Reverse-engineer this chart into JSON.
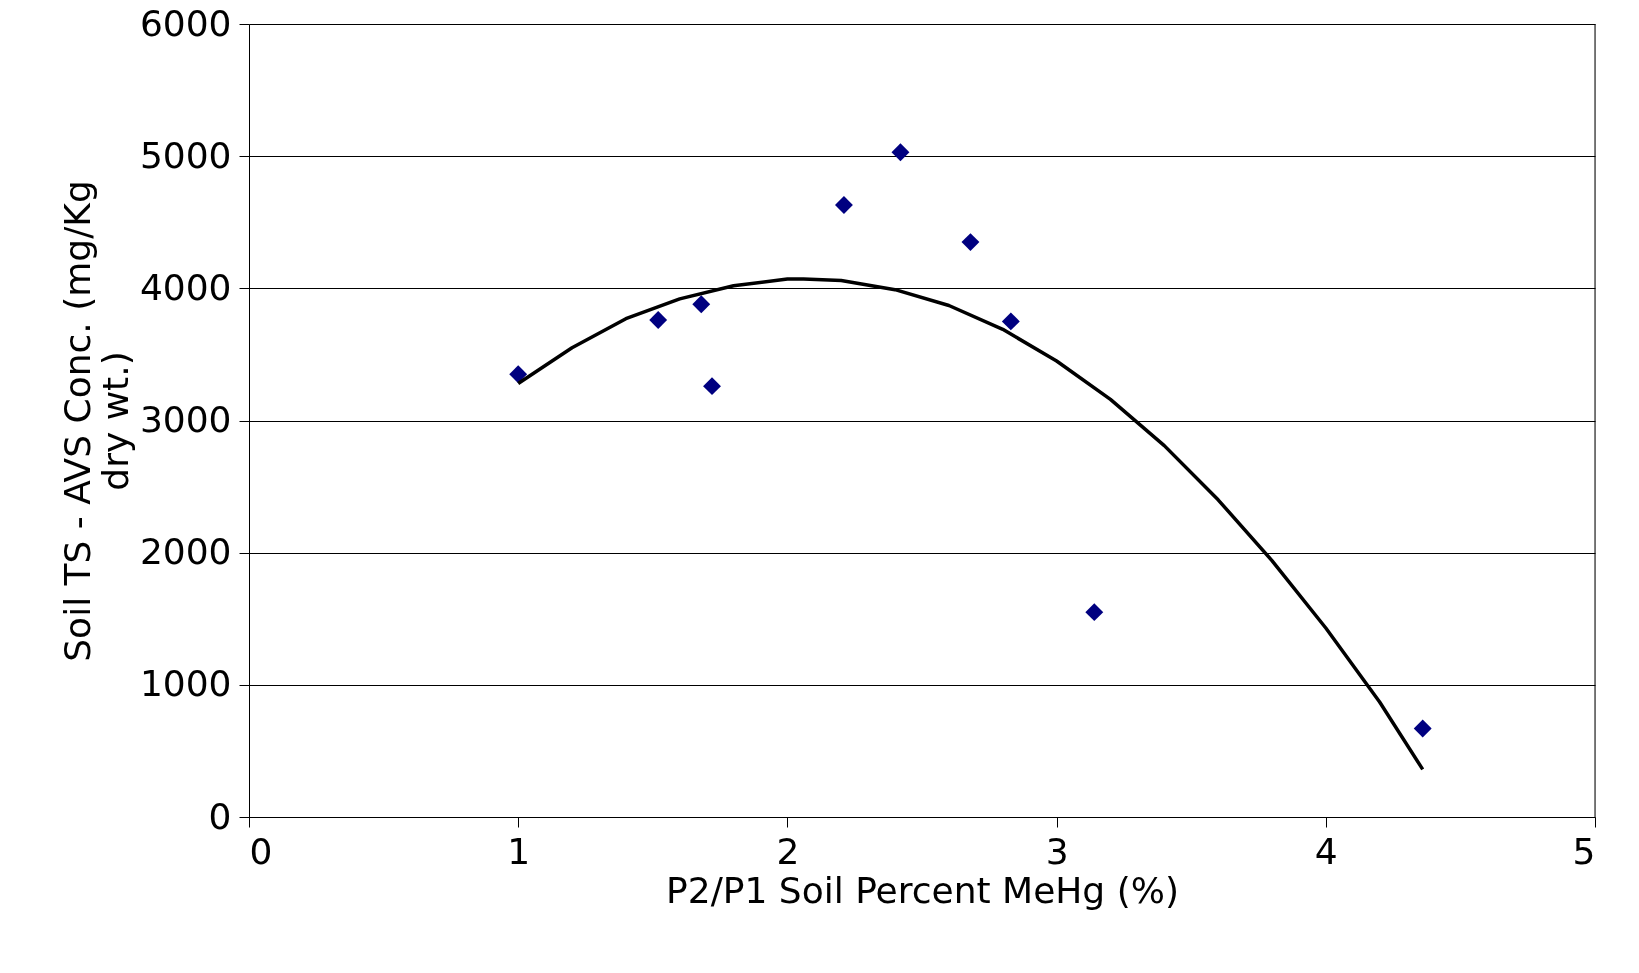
{
  "chart_data": {
    "type": "scatter",
    "xlabel": "P2/P1 Soil Percent MeHg (%)",
    "ylabel": "Soil TS - AVS Conc. (mg/Kg\ndry wt.)",
    "xlim": [
      0,
      5
    ],
    "xticks": [
      0,
      1,
      2,
      3,
      4,
      5
    ],
    "ylim": [
      0,
      6000
    ],
    "yticks": [
      0,
      1000,
      2000,
      3000,
      4000,
      5000,
      6000
    ],
    "grid": "y",
    "marker": "diamond",
    "series": [
      {
        "color": "#000080",
        "x": [
          1.0,
          1.52,
          1.68,
          1.72,
          2.21,
          2.42,
          2.68,
          2.83,
          3.14,
          4.36
        ],
        "values": [
          3350,
          3760,
          3880,
          3260,
          4630,
          5030,
          4350,
          3750,
          1550,
          670
        ]
      },
      {
        "type": "line",
        "color": "#000000",
        "line_style": "solid",
        "marker": "none",
        "x": [
          1.0,
          1.2,
          1.4,
          1.6,
          1.8,
          2.0,
          2.06,
          2.2,
          2.4,
          2.6,
          2.8,
          3.0,
          3.2,
          3.4,
          3.6,
          3.8,
          4.0,
          4.2,
          4.36
        ],
        "values": [
          3280,
          3550,
          3770,
          3920,
          4020,
          4070,
          4070,
          4060,
          3990,
          3870,
          3690,
          3450,
          3160,
          2810,
          2400,
          1940,
          1430,
          870,
          360
        ]
      }
    ]
  }
}
